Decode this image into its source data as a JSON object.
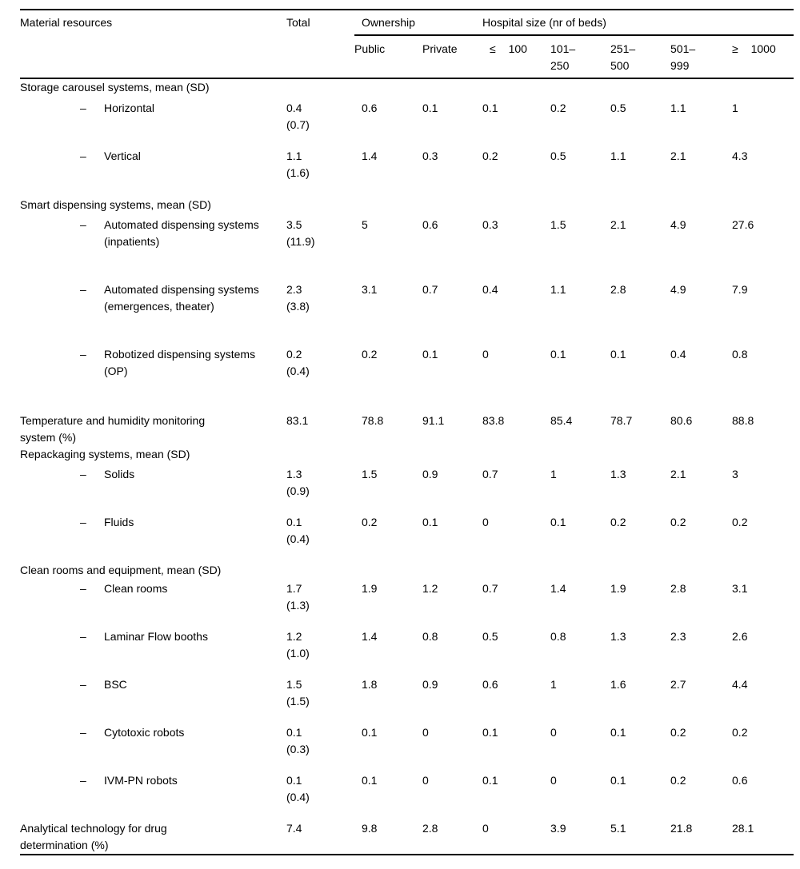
{
  "table": {
    "bullet": "–",
    "header": {
      "material_resources": "Material resources",
      "total": "Total",
      "ownership": "Ownership",
      "hospital_size": "Hospital size (nr of beds)",
      "subheaders": [
        "Public",
        "Private",
        "≤ 100",
        "101–\n250",
        "251–\n500",
        "501–\n999",
        "≥ 1000"
      ]
    },
    "rows": [
      {
        "type": "section",
        "label": "Storage carousel systems, mean (SD)"
      },
      {
        "type": "item",
        "label": "Horizontal",
        "total": "0.4\n(0.7)",
        "values": [
          "0.6",
          "0.1",
          "0.1",
          "0.2",
          "0.5",
          "1.1",
          "1"
        ]
      },
      {
        "type": "item",
        "label": "Vertical",
        "total": "1.1\n(1.6)",
        "values": [
          "1.4",
          "0.3",
          "0.2",
          "0.5",
          "1.1",
          "2.1",
          "4.3"
        ]
      },
      {
        "type": "section",
        "label": "Smart dispensing systems, mean (SD)"
      },
      {
        "type": "item",
        "label": "Automated dispensing systems\n(inpatients)",
        "total": "3.5\n(11.9)",
        "values": [
          "5",
          "0.6",
          "0.3",
          "1.5",
          "2.1",
          "4.9",
          "27.6"
        ]
      },
      {
        "type": "item",
        "label": "Automated dispensing systems\n(emergences, theater)",
        "total": "2.3\n(3.8)",
        "values": [
          "3.1",
          "0.7",
          "0.4",
          "1.1",
          "2.8",
          "4.9",
          "7.9"
        ]
      },
      {
        "type": "item",
        "label": "Robotized dispensing systems\n(OP)",
        "total": "0.2\n(0.4)",
        "values": [
          "0.2",
          "0.1",
          "0",
          "0.1",
          "0.1",
          "0.4",
          "0.8"
        ]
      },
      {
        "type": "plain",
        "label": "Temperature and humidity monitoring\nsystem (%)",
        "total": "83.1",
        "values": [
          "78.8",
          "91.1",
          "83.8",
          "85.4",
          "78.7",
          "80.6",
          "88.8"
        ]
      },
      {
        "type": "section",
        "label": "Repackaging systems, mean (SD)"
      },
      {
        "type": "item",
        "label": "Solids",
        "total": "1.3\n(0.9)",
        "values": [
          "1.5",
          "0.9",
          "0.7",
          "1",
          "1.3",
          "2.1",
          "3"
        ]
      },
      {
        "type": "item",
        "label": "Fluids",
        "total": "0.1\n(0.4)",
        "values": [
          "0.2",
          "0.1",
          "0",
          "0.1",
          "0.2",
          "0.2",
          "0.2"
        ]
      },
      {
        "type": "section",
        "label": "Clean rooms and equipment, mean (SD)"
      },
      {
        "type": "item",
        "label": "Clean rooms",
        "total": "1.7\n(1.3)",
        "values": [
          "1.9",
          "1.2",
          "0.7",
          "1.4",
          "1.9",
          "2.8",
          "3.1"
        ]
      },
      {
        "type": "item",
        "label": "Laminar Flow booths",
        "total": "1.2\n(1.0)",
        "values": [
          "1.4",
          "0.8",
          "0.5",
          "0.8",
          "1.3",
          "2.3",
          "2.6"
        ]
      },
      {
        "type": "item",
        "label": "BSC",
        "total": "1.5\n(1.5)",
        "values": [
          "1.8",
          "0.9",
          "0.6",
          "1",
          "1.6",
          "2.7",
          "4.4"
        ]
      },
      {
        "type": "item",
        "label": "Cytotoxic robots",
        "total": "0.1\n(0.3)",
        "values": [
          "0.1",
          "0",
          "0.1",
          "0",
          "0.1",
          "0.2",
          "0.2"
        ]
      },
      {
        "type": "item",
        "label": "IVM-PN robots",
        "total": "0.1\n(0.4)",
        "values": [
          "0.1",
          "0",
          "0.1",
          "0",
          "0.1",
          "0.2",
          "0.6"
        ]
      },
      {
        "type": "plain",
        "label": "Analytical technology for drug\ndetermination (%)",
        "total": "7.4",
        "values": [
          "9.8",
          "2.8",
          "0",
          "3.9",
          "5.1",
          "21.8",
          "28.1"
        ]
      }
    ]
  }
}
